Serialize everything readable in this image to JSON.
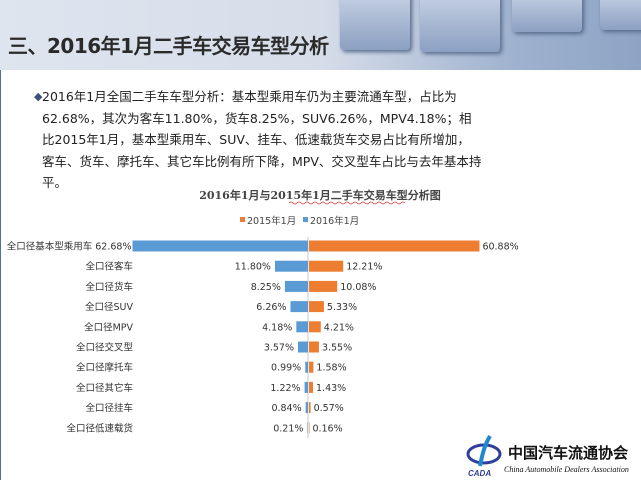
{
  "header": {
    "title": "三、2016年1月二手车交易车型分析"
  },
  "paragraph": {
    "bullet": "◆",
    "text": "2016年1月全国二手车车型分析：基本型乘用车仍为主要流通车型，占比为62.68%，其次为客车11.80%，货车8.25%，SUV6.26%，MPV4.18%；相比2015年1月，基本型乘用车、SUV、挂车、低速载货车交易占比有所增加，客车、货车、摩托车、其它车比例有所下降，MPV、交叉型车占比与去年基本持平。"
  },
  "chart_data": {
    "type": "bar",
    "orientation": "horizontal-butterfly",
    "title": "2016年1月与2015年1月二手车交易车型分析图",
    "categories": [
      "全口径基本型乘用车",
      "全口径客车",
      "全口径货车",
      "全口径SUV",
      "全口径MPV",
      "全口径交叉型",
      "全口径摩托车",
      "全口径其它车",
      "全口径挂车",
      "全口径低速载货"
    ],
    "series": [
      {
        "name": "2015年1月",
        "side": "right",
        "color": "#ed7d31",
        "values": [
          60.88,
          12.21,
          10.08,
          5.33,
          4.21,
          3.55,
          1.58,
          1.43,
          0.57,
          0.16
        ],
        "labels": [
          "60.88%",
          "12.21%",
          "10.08%",
          "5.33%",
          "4.21%",
          "3.55%",
          "1.58%",
          "1.43%",
          "0.57%",
          "0.16%"
        ]
      },
      {
        "name": "2016年1月",
        "side": "left",
        "color": "#5b9bd5",
        "values": [
          62.68,
          11.8,
          8.25,
          6.26,
          4.18,
          3.57,
          0.99,
          1.22,
          0.84,
          0.21
        ],
        "labels": [
          "62.68%",
          "11.80%",
          "8.25%",
          "6.26%",
          "4.18%",
          "3.57%",
          "0.99%",
          "1.22%",
          "0.84%",
          "0.21%"
        ]
      }
    ],
    "legend": "top",
    "grid": false
  },
  "logo": {
    "text_cn": "中国汽车流通协会",
    "text_en": "China Automobile Dealers Association",
    "abbr": "CADA"
  }
}
